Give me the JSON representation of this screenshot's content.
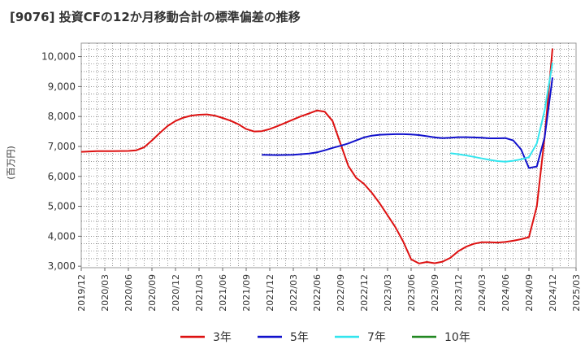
{
  "chart_data": {
    "type": "line",
    "title": "[9076]  投資CFの12か月移動合計の標準偏差の推移",
    "ylabel": "(百万円)",
    "xlabel": "",
    "ylim": [
      2950,
      10450
    ],
    "y_ticks": [
      3000,
      4000,
      5000,
      6000,
      7000,
      8000,
      9000,
      10000
    ],
    "y_tick_labels": [
      "3,000",
      "4,000",
      "5,000",
      "6,000",
      "7,000",
      "8,000",
      "9,000",
      "10,000"
    ],
    "x_range": [
      "2019-12",
      "2025-03"
    ],
    "x_ticks": [
      "2019/12",
      "2020/03",
      "2020/06",
      "2020/09",
      "2020/12",
      "2021/03",
      "2021/06",
      "2021/09",
      "2021/12",
      "2022/03",
      "2022/06",
      "2022/09",
      "2022/12",
      "2023/03",
      "2023/06",
      "2023/09",
      "2023/12",
      "2024/03",
      "2024/06",
      "2024/09",
      "2024/12",
      "2025/03"
    ],
    "grid": true,
    "legend_position": "bottom",
    "series": [
      {
        "name": "3年",
        "color": "#dd1111",
        "points": [
          [
            "2019-12",
            6820
          ],
          [
            "2020-02",
            6840
          ],
          [
            "2020-04",
            6840
          ],
          [
            "2020-06",
            6850
          ],
          [
            "2020-07",
            6870
          ],
          [
            "2020-08",
            6970
          ],
          [
            "2020-09",
            7200
          ],
          [
            "2020-10",
            7450
          ],
          [
            "2020-11",
            7680
          ],
          [
            "2020-12",
            7850
          ],
          [
            "2021-01",
            7960
          ],
          [
            "2021-02",
            8030
          ],
          [
            "2021-03",
            8060
          ],
          [
            "2021-04",
            8070
          ],
          [
            "2021-05",
            8030
          ],
          [
            "2021-06",
            7950
          ],
          [
            "2021-07",
            7860
          ],
          [
            "2021-08",
            7740
          ],
          [
            "2021-09",
            7580
          ],
          [
            "2021-10",
            7500
          ],
          [
            "2021-11",
            7510
          ],
          [
            "2021-12",
            7580
          ],
          [
            "2022-01",
            7680
          ],
          [
            "2022-02",
            7790
          ],
          [
            "2022-03",
            7900
          ],
          [
            "2022-04",
            8010
          ],
          [
            "2022-05",
            8100
          ],
          [
            "2022-06",
            8200
          ],
          [
            "2022-07",
            8160
          ],
          [
            "2022-08",
            7850
          ],
          [
            "2022-09",
            7100
          ],
          [
            "2022-10",
            6350
          ],
          [
            "2022-11",
            5950
          ],
          [
            "2022-12",
            5750
          ],
          [
            "2023-01",
            5450
          ],
          [
            "2023-02",
            5100
          ],
          [
            "2023-03",
            4700
          ],
          [
            "2023-04",
            4300
          ],
          [
            "2023-05",
            3820
          ],
          [
            "2023-06",
            3230
          ],
          [
            "2023-07",
            3090
          ],
          [
            "2023-08",
            3140
          ],
          [
            "2023-09",
            3100
          ],
          [
            "2023-10",
            3150
          ],
          [
            "2023-11",
            3280
          ],
          [
            "2023-12",
            3500
          ],
          [
            "2024-01",
            3650
          ],
          [
            "2024-02",
            3750
          ],
          [
            "2024-03",
            3800
          ],
          [
            "2024-04",
            3800
          ],
          [
            "2024-05",
            3790
          ],
          [
            "2024-06",
            3810
          ],
          [
            "2024-07",
            3850
          ],
          [
            "2024-08",
            3900
          ],
          [
            "2024-09",
            3970
          ],
          [
            "2024-10",
            5000
          ],
          [
            "2024-11",
            7300
          ],
          [
            "2024-12",
            10270
          ]
        ]
      },
      {
        "name": "5年",
        "color": "#1111cc",
        "points": [
          [
            "2021-11",
            6720
          ],
          [
            "2022-01",
            6710
          ],
          [
            "2022-03",
            6720
          ],
          [
            "2022-05",
            6760
          ],
          [
            "2022-06",
            6800
          ],
          [
            "2022-07",
            6870
          ],
          [
            "2022-08",
            6950
          ],
          [
            "2022-09",
            7020
          ],
          [
            "2022-10",
            7100
          ],
          [
            "2022-11",
            7200
          ],
          [
            "2022-12",
            7300
          ],
          [
            "2023-01",
            7360
          ],
          [
            "2023-02",
            7390
          ],
          [
            "2023-03",
            7400
          ],
          [
            "2023-04",
            7410
          ],
          [
            "2023-05",
            7410
          ],
          [
            "2023-06",
            7400
          ],
          [
            "2023-07",
            7380
          ],
          [
            "2023-08",
            7340
          ],
          [
            "2023-09",
            7300
          ],
          [
            "2023-10",
            7280
          ],
          [
            "2023-11",
            7290
          ],
          [
            "2023-12",
            7310
          ],
          [
            "2024-01",
            7310
          ],
          [
            "2024-02",
            7300
          ],
          [
            "2024-03",
            7290
          ],
          [
            "2024-04",
            7270
          ],
          [
            "2024-05",
            7270
          ],
          [
            "2024-06",
            7280
          ],
          [
            "2024-07",
            7200
          ],
          [
            "2024-08",
            6900
          ],
          [
            "2024-09",
            6280
          ],
          [
            "2024-10",
            6330
          ],
          [
            "2024-11",
            7300
          ],
          [
            "2024-12",
            9300
          ]
        ]
      },
      {
        "name": "7年",
        "color": "#33e5ee",
        "points": [
          [
            "2023-11",
            6770
          ],
          [
            "2023-12",
            6740
          ],
          [
            "2024-01",
            6700
          ],
          [
            "2024-02",
            6650
          ],
          [
            "2024-03",
            6600
          ],
          [
            "2024-04",
            6550
          ],
          [
            "2024-05",
            6510
          ],
          [
            "2024-06",
            6490
          ],
          [
            "2024-07",
            6520
          ],
          [
            "2024-08",
            6570
          ],
          [
            "2024-09",
            6640
          ],
          [
            "2024-10",
            7100
          ],
          [
            "2024-11",
            8200
          ],
          [
            "2024-12",
            9800
          ]
        ]
      },
      {
        "name": "10年",
        "color": "#228822",
        "points": []
      }
    ]
  }
}
